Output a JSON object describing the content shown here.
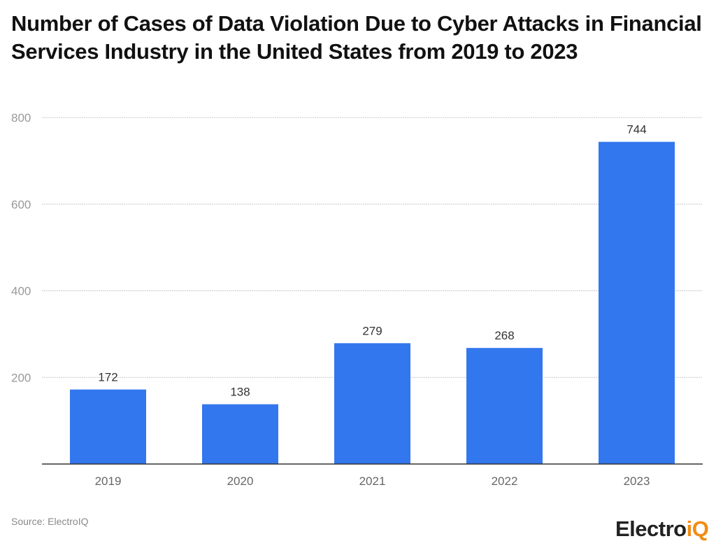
{
  "chart_data": {
    "type": "bar",
    "title": "Number of Cases of Data Violation Due to Cyber Attacks in Financial Services Industry in the United States from 2019 to 2023",
    "categories": [
      "2019",
      "2020",
      "2021",
      "2022",
      "2023"
    ],
    "values": [
      172,
      138,
      279,
      268,
      744
    ],
    "data_labels": [
      "172",
      "138",
      "279",
      "268",
      "744"
    ],
    "xlabel": "",
    "ylabel": "",
    "ylim": [
      0,
      800
    ],
    "yticks": [
      200,
      400,
      600,
      800
    ],
    "ytick_labels": [
      "200",
      "400",
      "600",
      "800"
    ],
    "grid": true,
    "bar_color": "#3377ee",
    "source": "Source: ElectroIQ"
  },
  "logo": {
    "text_main": "Electro",
    "text_accent": "iQ",
    "accent_color": "#f28c13"
  }
}
